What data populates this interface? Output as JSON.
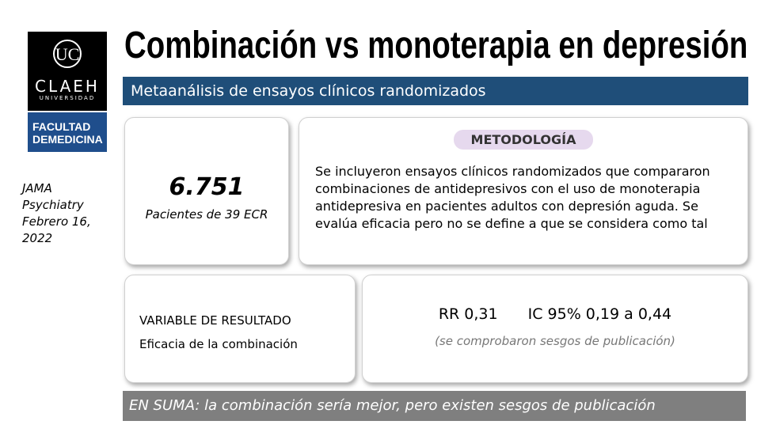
{
  "header": {
    "title": "Combinación vs monoterapia en depresión",
    "subtitle": "Metaanálisis de ensayos clínicos randomizados"
  },
  "logo": {
    "brand": "CLAEH",
    "university": "UNIVERSIDAD",
    "faculty_line1": "FACULTAD",
    "faculty_line2_a": "DE",
    "faculty_line2_b": "MEDICINA"
  },
  "sidebar": {
    "lines": [
      "JAMA",
      "Psychiatry",
      "Febrero 16,",
      "2022"
    ]
  },
  "cards": [
    {
      "value": "6.751",
      "caption": "Pacientes de 39 ECR"
    },
    {
      "heading": "METODOLOGÍA",
      "body": "Se incluyeron ensayos clínicos randomizados que compararon combinaciones de antidepresivos con el uso de monoterapia antidepresiva en pacientes adultos con depresión aguda. Se evalúa eficacia pero no se define a que se considera como tal"
    },
    {
      "heading": "VARIABLE DE RESULTADO",
      "body": "Eficacia de la combinación"
    },
    {
      "rr": "RR 0,31",
      "ic": "IC 95% 0,19 a 0,44",
      "note": "(se comprobaron sesgos de publicación)"
    }
  ],
  "summary": "EN SUMA: la combinación sería mejor, pero existen sesgos de publicación"
}
